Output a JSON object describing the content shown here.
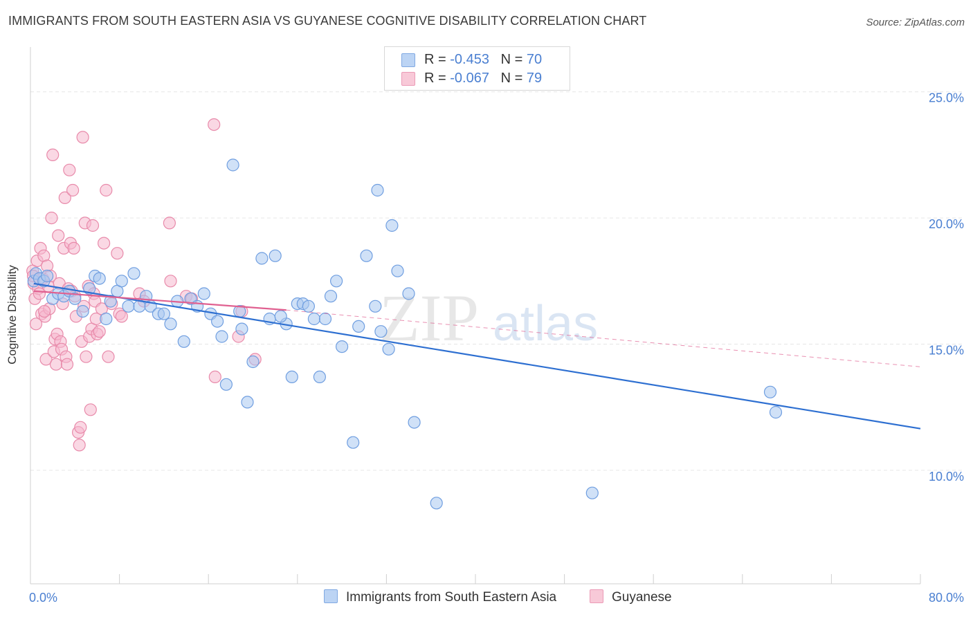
{
  "header": {
    "title": "IMMIGRANTS FROM SOUTH EASTERN ASIA VS GUYANESE COGNITIVE DISABILITY CORRELATION CHART",
    "source": "Source: ZipAtlas.com"
  },
  "legend": {
    "series1": {
      "r_label": "R = ",
      "r_value": "-0.453",
      "n_label": "N = ",
      "n_value": "70"
    },
    "series2": {
      "r_label": "R = ",
      "r_value": "-0.067",
      "n_label": "N = ",
      "n_value": "79"
    }
  },
  "watermark": {
    "zip": "ZIP",
    "atlas": "atlas"
  },
  "colors": {
    "blue_fill": "#a9c8f0",
    "blue_stroke": "#6f9ee0",
    "blue_line": "#2d6fd1",
    "pink_fill": "#f5b8cd",
    "pink_stroke": "#e88aaa",
    "pink_line": "#e06090",
    "axis_text": "#4a7fd1",
    "grid": "#e6e6e6"
  },
  "chart_data": {
    "type": "scatter",
    "title": "IMMIGRANTS FROM SOUTH EASTERN ASIA VS GUYANESE COGNITIVE DISABILITY CORRELATION CHART",
    "xlabel": "",
    "ylabel": "Cognitive Disability",
    "xlim": [
      0,
      80
    ],
    "ylim": [
      5.5,
      26.5
    ],
    "x_ticks": [
      0,
      8,
      16,
      24,
      32,
      40,
      48,
      56,
      64,
      72,
      80
    ],
    "x_tick_labels_shown": {
      "0": "0.0%",
      "80": "80.0%"
    },
    "y_ticks": [
      10,
      15,
      20,
      25
    ],
    "y_tick_labels": [
      "10.0%",
      "15.0%",
      "20.0%",
      "25.0%"
    ],
    "grid": "horizontal dashed",
    "legend_position": "top-center",
    "series": [
      {
        "name": "Immigrants from South Eastern Asia",
        "color": "#a9c8f0",
        "trend": {
          "x": [
            0.3,
            80
          ],
          "y": [
            17.4,
            11.65
          ],
          "style": "solid"
        },
        "points": [
          [
            0.3,
            17.5
          ],
          [
            0.5,
            17.8
          ],
          [
            0.8,
            17.6
          ],
          [
            1.2,
            17.5
          ],
          [
            1.5,
            17.7
          ],
          [
            2.0,
            16.8
          ],
          [
            2.5,
            17.0
          ],
          [
            3.0,
            16.9
          ],
          [
            3.5,
            17.1
          ],
          [
            4.0,
            16.8
          ],
          [
            4.7,
            16.3
          ],
          [
            5.3,
            17.2
          ],
          [
            5.8,
            17.7
          ],
          [
            6.2,
            17.6
          ],
          [
            6.8,
            16.0
          ],
          [
            7.2,
            16.7
          ],
          [
            7.8,
            17.1
          ],
          [
            8.2,
            17.5
          ],
          [
            8.8,
            16.5
          ],
          [
            9.3,
            17.8
          ],
          [
            9.8,
            16.5
          ],
          [
            10.4,
            16.9
          ],
          [
            10.8,
            16.5
          ],
          [
            11.5,
            16.2
          ],
          [
            12.0,
            16.2
          ],
          [
            12.6,
            15.8
          ],
          [
            13.2,
            16.7
          ],
          [
            13.8,
            15.1
          ],
          [
            14.4,
            16.8
          ],
          [
            15.0,
            16.5
          ],
          [
            15.6,
            17.0
          ],
          [
            16.2,
            16.2
          ],
          [
            16.8,
            15.9
          ],
          [
            17.2,
            15.3
          ],
          [
            17.6,
            13.4
          ],
          [
            18.2,
            22.1
          ],
          [
            18.8,
            16.3
          ],
          [
            19.0,
            15.6
          ],
          [
            19.5,
            12.7
          ],
          [
            20.0,
            14.3
          ],
          [
            20.8,
            18.4
          ],
          [
            21.5,
            16.0
          ],
          [
            22.0,
            18.5
          ],
          [
            23.0,
            15.8
          ],
          [
            23.5,
            13.7
          ],
          [
            24.0,
            16.6
          ],
          [
            24.5,
            16.6
          ],
          [
            25.5,
            16.0
          ],
          [
            26.0,
            13.7
          ],
          [
            26.5,
            16.0
          ],
          [
            27.0,
            16.9
          ],
          [
            27.5,
            17.5
          ],
          [
            28.0,
            14.9
          ],
          [
            29.0,
            11.1
          ],
          [
            29.5,
            15.7
          ],
          [
            30.2,
            18.5
          ],
          [
            31.0,
            16.5
          ],
          [
            31.5,
            15.5
          ],
          [
            31.2,
            21.1
          ],
          [
            32.2,
            14.8
          ],
          [
            32.5,
            19.7
          ],
          [
            33.0,
            17.9
          ],
          [
            34.0,
            17.0
          ],
          [
            34.5,
            11.9
          ],
          [
            36.5,
            8.7
          ],
          [
            50.5,
            9.1
          ],
          [
            66.5,
            13.1
          ],
          [
            67.0,
            12.3
          ],
          [
            22.5,
            16.1
          ],
          [
            25.0,
            16.5
          ]
        ]
      },
      {
        "name": "Guyanese",
        "color": "#f5b8cd",
        "trend": {
          "x": [
            0.3,
            23
          ],
          "y": [
            17.1,
            16.35
          ],
          "style": "solid",
          "dashed_extension_to": [
            80,
            14.1
          ]
        },
        "points": [
          [
            0.2,
            17.9
          ],
          [
            0.3,
            17.4
          ],
          [
            0.4,
            16.8
          ],
          [
            0.5,
            15.8
          ],
          [
            0.6,
            18.3
          ],
          [
            0.7,
            17.2
          ],
          [
            0.8,
            17.0
          ],
          [
            0.9,
            18.8
          ],
          [
            1.0,
            16.2
          ],
          [
            1.1,
            17.6
          ],
          [
            1.2,
            18.5
          ],
          [
            1.3,
            16.1
          ],
          [
            1.4,
            14.4
          ],
          [
            1.5,
            18.1
          ],
          [
            1.6,
            17.3
          ],
          [
            1.7,
            16.4
          ],
          [
            1.8,
            17.7
          ],
          [
            1.9,
            20.0
          ],
          [
            2.0,
            22.5
          ],
          [
            2.1,
            14.7
          ],
          [
            2.2,
            15.2
          ],
          [
            2.3,
            14.2
          ],
          [
            2.4,
            15.4
          ],
          [
            2.5,
            19.3
          ],
          [
            2.6,
            17.4
          ],
          [
            2.7,
            15.1
          ],
          [
            2.8,
            14.8
          ],
          [
            2.9,
            16.6
          ],
          [
            3.0,
            18.8
          ],
          [
            3.1,
            20.8
          ],
          [
            3.2,
            14.5
          ],
          [
            3.3,
            14.2
          ],
          [
            3.4,
            17.2
          ],
          [
            3.5,
            21.9
          ],
          [
            3.6,
            19.0
          ],
          [
            3.7,
            17.1
          ],
          [
            3.8,
            21.1
          ],
          [
            3.9,
            18.8
          ],
          [
            4.0,
            16.9
          ],
          [
            4.1,
            16.1
          ],
          [
            4.3,
            11.5
          ],
          [
            4.4,
            11.0
          ],
          [
            4.5,
            11.7
          ],
          [
            4.6,
            15.1
          ],
          [
            4.7,
            23.2
          ],
          [
            4.8,
            16.5
          ],
          [
            4.9,
            19.8
          ],
          [
            5.0,
            14.5
          ],
          [
            5.2,
            17.3
          ],
          [
            5.3,
            15.3
          ],
          [
            5.4,
            12.4
          ],
          [
            5.5,
            15.6
          ],
          [
            5.6,
            19.7
          ],
          [
            5.7,
            17.0
          ],
          [
            5.8,
            16.7
          ],
          [
            5.9,
            16.0
          ],
          [
            6.0,
            15.4
          ],
          [
            6.2,
            15.5
          ],
          [
            6.4,
            16.4
          ],
          [
            6.6,
            19.0
          ],
          [
            6.8,
            21.1
          ],
          [
            7.0,
            14.5
          ],
          [
            7.3,
            16.6
          ],
          [
            7.8,
            18.6
          ],
          [
            8.0,
            16.2
          ],
          [
            8.2,
            16.1
          ],
          [
            9.8,
            17.0
          ],
          [
            10.2,
            16.7
          ],
          [
            12.5,
            19.8
          ],
          [
            12.6,
            17.5
          ],
          [
            14.0,
            16.9
          ],
          [
            14.5,
            16.8
          ],
          [
            16.5,
            23.7
          ],
          [
            16.6,
            13.7
          ],
          [
            18.7,
            15.3
          ],
          [
            19.0,
            16.3
          ],
          [
            20.2,
            14.4
          ],
          [
            0.25,
            17.7
          ],
          [
            1.25,
            16.3
          ]
        ]
      }
    ]
  },
  "bottom_legend": {
    "item1": "Immigrants from South Eastern Asia",
    "item2": "Guyanese"
  }
}
